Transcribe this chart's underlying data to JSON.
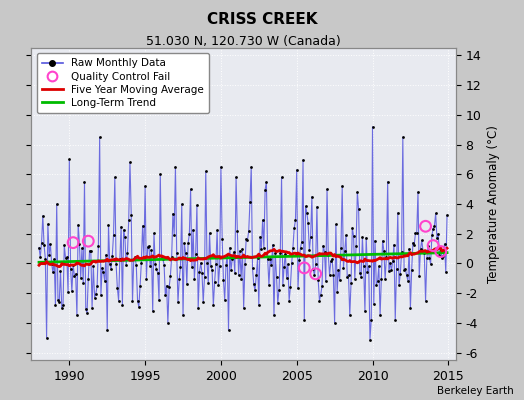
{
  "title": "CRISS CREEK",
  "subtitle": "51.030 N, 120.730 W (Canada)",
  "ylabel": "Temperature Anomaly (°C)",
  "attribution": "Berkeley Earth",
  "xlim": [
    1987.5,
    2015.5
  ],
  "ylim": [
    -6.5,
    14.5
  ],
  "yticks": [
    -6,
    -4,
    -2,
    0,
    2,
    4,
    6,
    8,
    10,
    12,
    14
  ],
  "xticks": [
    1990,
    1995,
    2000,
    2005,
    2010,
    2015
  ],
  "fig_bg_color": "#c8c8c8",
  "plot_bg_color": "#e8eaf0",
  "raw_color": "#5555dd",
  "raw_dot_color": "#000000",
  "ma_color": "#dd0000",
  "trend_color": "#00bb00",
  "qc_fail_color": "#ff44cc",
  "seed": 42,
  "n_months": 324,
  "start_year": 1988.0,
  "qc_fail_times": [
    1990.25,
    1991.25,
    2005.5,
    2006.25,
    2013.5,
    2014.0,
    2014.5
  ],
  "qc_fail_vals": [
    1.4,
    1.5,
    -0.3,
    -0.7,
    2.5,
    1.2,
    0.8
  ]
}
